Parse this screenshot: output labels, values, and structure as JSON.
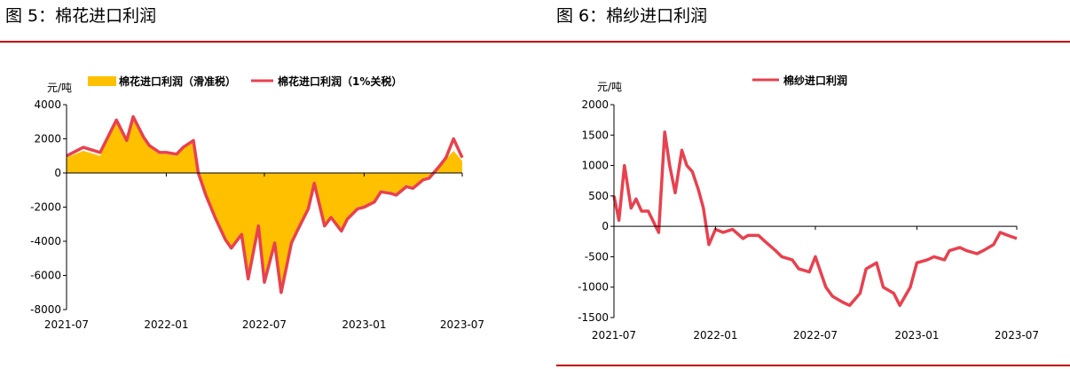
{
  "figures": {
    "left_title": "图 5：棉花进口利润",
    "right_title": "图 6：棉纱进口利润"
  },
  "colors": {
    "rule": "#c00000",
    "area": "#ffc000",
    "line": "#e8414f"
  },
  "chart_data": [
    {
      "type": "area",
      "title": "",
      "unit_label": "元/吨",
      "xlabel": "",
      "ylabel": "",
      "x_ticks": [
        "2021-07",
        "2022-01",
        "2022-07",
        "2023-01",
        "2023-07"
      ],
      "x_range": [
        "2021-07-01",
        "2023-07-01"
      ],
      "y_ticks": [
        4000,
        2000,
        0,
        -2000,
        -4000,
        -6000,
        -8000
      ],
      "ylim": [
        -8000,
        4000
      ],
      "legend_position": "top",
      "grid": false,
      "series": [
        {
          "name": "棉花进口利润（滑准税）",
          "kind": "area",
          "x": [
            "2021-07-01",
            "2021-08-01",
            "2021-09-01",
            "2021-10-01",
            "2021-10-20",
            "2021-11-01",
            "2021-11-20",
            "2021-12-01",
            "2021-12-20",
            "2022-01-01",
            "2022-01-20",
            "2022-02-01",
            "2022-02-20",
            "2022-03-01",
            "2022-03-15",
            "2022-04-01",
            "2022-04-20",
            "2022-05-01",
            "2022-05-20",
            "2022-06-01",
            "2022-06-20",
            "2022-07-01",
            "2022-07-20",
            "2022-08-01",
            "2022-08-20",
            "2022-09-01",
            "2022-09-20",
            "2022-10-01",
            "2022-10-20",
            "2022-11-01",
            "2022-11-20",
            "2022-12-01",
            "2022-12-20",
            "2023-01-01",
            "2023-01-20",
            "2023-02-01",
            "2023-02-20",
            "2023-03-01",
            "2023-03-20",
            "2023-04-01",
            "2023-04-20",
            "2023-05-01",
            "2023-05-20",
            "2023-06-01",
            "2023-06-15",
            "2023-07-01"
          ],
          "y": [
            900,
            1300,
            1000,
            3000,
            1800,
            3200,
            2000,
            1500,
            1100,
            1100,
            1000,
            1400,
            1800,
            0,
            -1200,
            -2500,
            -3800,
            -4300,
            -3500,
            -6000,
            -3000,
            -6200,
            -4000,
            -6800,
            -4000,
            -3200,
            -2000,
            -500,
            -3000,
            -2500,
            -3300,
            -2600,
            -2000,
            -1900,
            -1600,
            -1000,
            -1100,
            -1200,
            -700,
            -800,
            -300,
            -200,
            400,
            800,
            1300,
            700
          ]
        },
        {
          "name": "棉花进口利润（1%关税）",
          "kind": "line",
          "x": [
            "2021-07-01",
            "2021-08-01",
            "2021-09-01",
            "2021-10-01",
            "2021-10-20",
            "2021-11-01",
            "2021-11-20",
            "2021-12-01",
            "2021-12-20",
            "2022-01-01",
            "2022-01-20",
            "2022-02-01",
            "2022-02-20",
            "2022-03-01",
            "2022-03-15",
            "2022-04-01",
            "2022-04-20",
            "2022-05-01",
            "2022-05-20",
            "2022-06-01",
            "2022-06-20",
            "2022-07-01",
            "2022-07-20",
            "2022-08-01",
            "2022-08-20",
            "2022-09-01",
            "2022-09-20",
            "2022-10-01",
            "2022-10-20",
            "2022-11-01",
            "2022-11-20",
            "2022-12-01",
            "2022-12-20",
            "2023-01-01",
            "2023-01-20",
            "2023-02-01",
            "2023-02-20",
            "2023-03-01",
            "2023-03-20",
            "2023-04-01",
            "2023-04-20",
            "2023-05-01",
            "2023-05-20",
            "2023-06-01",
            "2023-06-15",
            "2023-07-01"
          ],
          "y": [
            1000,
            1500,
            1200,
            3100,
            1900,
            3300,
            2100,
            1600,
            1200,
            1200,
            1100,
            1500,
            1900,
            0,
            -1300,
            -2600,
            -3900,
            -4400,
            -3600,
            -6200,
            -3100,
            -6400,
            -4100,
            -7000,
            -4100,
            -3300,
            -2100,
            -600,
            -3100,
            -2600,
            -3400,
            -2700,
            -2100,
            -2000,
            -1700,
            -1100,
            -1200,
            -1300,
            -800,
            -900,
            -400,
            -300,
            400,
            900,
            2000,
            900
          ]
        }
      ]
    },
    {
      "type": "line",
      "title": "",
      "unit_label": "元/吨",
      "xlabel": "",
      "ylabel": "",
      "x_ticks": [
        "2021-07",
        "2022-01",
        "2022-07",
        "2023-01",
        "2023-07"
      ],
      "x_range": [
        "2021-07-01",
        "2023-07-01"
      ],
      "y_ticks": [
        2000,
        1500,
        1000,
        500,
        0,
        -500,
        -1000,
        -1500
      ],
      "ylim": [
        -1500,
        2000
      ],
      "legend_position": "top",
      "grid": false,
      "series": [
        {
          "name": "棉纱进口利润",
          "kind": "line",
          "x": [
            "2021-07-01",
            "2021-07-10",
            "2021-07-20",
            "2021-08-01",
            "2021-08-10",
            "2021-08-20",
            "2021-09-01",
            "2021-09-20",
            "2021-10-01",
            "2021-10-10",
            "2021-10-20",
            "2021-11-01",
            "2021-11-10",
            "2021-11-20",
            "2021-12-01",
            "2021-12-10",
            "2021-12-20",
            "2022-01-01",
            "2022-01-15",
            "2022-02-01",
            "2022-02-20",
            "2022-03-01",
            "2022-03-20",
            "2022-04-01",
            "2022-04-20",
            "2022-05-01",
            "2022-05-20",
            "2022-06-01",
            "2022-06-20",
            "2022-07-01",
            "2022-07-20",
            "2022-08-01",
            "2022-08-20",
            "2022-09-01",
            "2022-09-20",
            "2022-10-01",
            "2022-10-20",
            "2022-11-01",
            "2022-11-20",
            "2022-12-01",
            "2022-12-20",
            "2023-01-01",
            "2023-01-20",
            "2023-02-01",
            "2023-02-20",
            "2023-03-01",
            "2023-03-20",
            "2023-04-01",
            "2023-04-20",
            "2023-05-01",
            "2023-05-20",
            "2023-06-01",
            "2023-06-15",
            "2023-07-01"
          ],
          "y": [
            500,
            100,
            1000,
            300,
            450,
            250,
            250,
            -100,
            1550,
            1000,
            550,
            1250,
            1000,
            900,
            600,
            300,
            -300,
            -50,
            -100,
            -50,
            -200,
            -150,
            -150,
            -250,
            -400,
            -500,
            -550,
            -700,
            -750,
            -500,
            -1000,
            -1150,
            -1250,
            -1300,
            -1100,
            -700,
            -600,
            -1000,
            -1100,
            -1300,
            -1000,
            -600,
            -550,
            -500,
            -550,
            -400,
            -350,
            -400,
            -450,
            -400,
            -300,
            -100,
            -150,
            -200
          ]
        }
      ]
    }
  ]
}
